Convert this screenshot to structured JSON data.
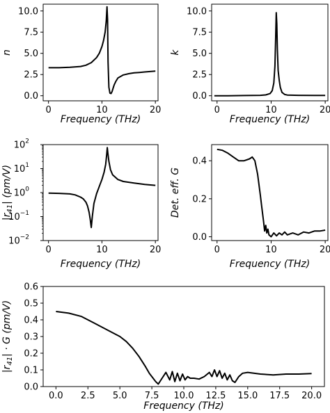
{
  "chart_data": [
    {
      "id": "n",
      "type": "line",
      "xlabel": "Frequency (THz)",
      "ylabel": "n",
      "xlim": [
        -1,
        20.5
      ],
      "ylim": [
        -0.6,
        10.8
      ],
      "xticks": [
        0,
        10,
        20
      ],
      "xtick_labels": [
        "0",
        "10",
        "20"
      ],
      "yticks": [
        0,
        2.5,
        5,
        7.5,
        10
      ],
      "ytick_labels": [
        "0.0",
        "2.5",
        "5.0",
        "7.5",
        "10.0"
      ],
      "yscale": "linear",
      "x": [
        0,
        2,
        4,
        6,
        7,
        8,
        9,
        9.5,
        10,
        10.3,
        10.6,
        10.8,
        10.95,
        11.05,
        11.15,
        11.3,
        11.5,
        11.7,
        11.9,
        12.1,
        12.3,
        12.6,
        13,
        14,
        15,
        16,
        17,
        18,
        19,
        20
      ],
      "y": [
        3.3,
        3.3,
        3.35,
        3.45,
        3.6,
        3.9,
        4.5,
        5.0,
        5.8,
        6.5,
        7.5,
        8.8,
        10.5,
        9.0,
        4.0,
        1.0,
        0.3,
        0.25,
        0.5,
        0.9,
        1.3,
        1.7,
        2.1,
        2.45,
        2.6,
        2.7,
        2.75,
        2.8,
        2.85,
        2.9
      ]
    },
    {
      "id": "k",
      "type": "line",
      "xlabel": "Frequency (THz)",
      "ylabel": "k",
      "xlim": [
        -1,
        20.5
      ],
      "ylim": [
        -0.6,
        10.8
      ],
      "xticks": [
        0,
        10,
        20
      ],
      "xtick_labels": [
        "0",
        "10",
        "20"
      ],
      "yticks": [
        0,
        2.5,
        5,
        7.5,
        10
      ],
      "ytick_labels": [
        "0.0",
        "2.5",
        "5.0",
        "7.5",
        "10.0"
      ],
      "yscale": "linear",
      "x": [
        -0.5,
        2,
        5,
        8,
        9,
        9.8,
        10.2,
        10.5,
        10.7,
        10.85,
        10.95,
        11.05,
        11.15,
        11.3,
        11.5,
        11.7,
        12.0,
        12.5,
        13,
        15,
        18,
        20
      ],
      "y": [
        0.0,
        0.0,
        0.02,
        0.05,
        0.1,
        0.25,
        0.6,
        1.5,
        3.5,
        7.0,
        9.8,
        8.5,
        5.5,
        3.0,
        1.8,
        1.0,
        0.4,
        0.15,
        0.08,
        0.05,
        0.04,
        0.04
      ]
    },
    {
      "id": "r41",
      "type": "line",
      "xlabel": "Frequency (THz)",
      "ylabel": "|r41| (pm/V)",
      "xlim": [
        -1,
        20.5
      ],
      "ylim": [
        0.01,
        100
      ],
      "xticks": [
        0,
        10,
        20
      ],
      "xtick_labels": [
        "0",
        "10",
        "20"
      ],
      "yticks": [
        0.01,
        0.1,
        1,
        10,
        100
      ],
      "ytick_labels": [
        "10",
        "10",
        "10",
        "10",
        "10"
      ],
      "ytick_exponents": [
        "−2",
        "−1",
        "0",
        "1",
        "2"
      ],
      "yscale": "log",
      "x": [
        0,
        2,
        4,
        5,
        6,
        6.5,
        7,
        7.3,
        7.6,
        7.8,
        8.0,
        8.2,
        8.5,
        9,
        9.5,
        10,
        10.4,
        10.7,
        10.9,
        11.0,
        11.1,
        11.3,
        11.6,
        12,
        13,
        14,
        16,
        18,
        20
      ],
      "y": [
        0.95,
        0.93,
        0.88,
        0.8,
        0.65,
        0.55,
        0.4,
        0.28,
        0.15,
        0.08,
        0.035,
        0.1,
        0.35,
        0.9,
        1.8,
        3.5,
        7,
        15,
        40,
        75,
        45,
        20,
        9,
        5.5,
        3.5,
        2.9,
        2.5,
        2.2,
        2.0
      ]
    },
    {
      "id": "G",
      "type": "line",
      "xlabel": "Frequency (THz)",
      "ylabel": "Det. eff. G",
      "xlim": [
        -1,
        20.5
      ],
      "ylim": [
        -0.02,
        0.485
      ],
      "xticks": [
        0,
        10,
        20
      ],
      "xtick_labels": [
        "0",
        "10",
        "20"
      ],
      "yticks": [
        0,
        0.2,
        0.4
      ],
      "ytick_labels": [
        "0.0",
        "0.2",
        "0.4"
      ],
      "yscale": "linear",
      "x": [
        0,
        1,
        2,
        3,
        4,
        5,
        6,
        6.5,
        7,
        7.5,
        8,
        8.3,
        8.6,
        8.8,
        9,
        9.2,
        9.4,
        9.6,
        10,
        10.5,
        11,
        11.5,
        12,
        12.5,
        13,
        14,
        15,
        16,
        17,
        18,
        19,
        20
      ],
      "y": [
        0.46,
        0.455,
        0.44,
        0.42,
        0.4,
        0.4,
        0.41,
        0.42,
        0.4,
        0.33,
        0.22,
        0.15,
        0.08,
        0.03,
        0.06,
        0.02,
        0.04,
        0.01,
        0.0,
        0.02,
        0.005,
        0.02,
        0.01,
        0.025,
        0.01,
        0.02,
        0.01,
        0.025,
        0.02,
        0.03,
        0.03,
        0.035
      ]
    },
    {
      "id": "r41G",
      "type": "line",
      "xlabel": "Frequency (THz)",
      "ylabel": "|r41| · G (pm/V)",
      "xlim": [
        -1,
        21
      ],
      "ylim": [
        0,
        0.6
      ],
      "xticks": [
        0,
        2.5,
        5,
        7.5,
        10,
        12.5,
        15,
        17.5,
        20
      ],
      "xtick_labels": [
        "0.0",
        "2.5",
        "5.0",
        "7.5",
        "10.0",
        "12.5",
        "15.0",
        "17.5",
        "20.0"
      ],
      "yticks": [
        0,
        0.1,
        0.2,
        0.3,
        0.4,
        0.5,
        0.6
      ],
      "ytick_labels": [
        "0.0",
        "0.1",
        "0.2",
        "0.3",
        "0.4",
        "0.5",
        "0.6"
      ],
      "yscale": "linear",
      "x": [
        0,
        1,
        2,
        3,
        4,
        5,
        5.5,
        6,
        6.5,
        7,
        7.3,
        7.6,
        7.8,
        8.0,
        8.3,
        8.6,
        8.9,
        9.1,
        9.3,
        9.5,
        9.7,
        9.9,
        10.1,
        10.3,
        10.5,
        10.8,
        11.2,
        11.6,
        12.0,
        12.2,
        12.4,
        12.6,
        12.8,
        13.0,
        13.2,
        13.4,
        13.6,
        13.8,
        14.0,
        14.3,
        14.6,
        15,
        16,
        17,
        18,
        19,
        20
      ],
      "y": [
        0.45,
        0.44,
        0.42,
        0.38,
        0.34,
        0.3,
        0.27,
        0.23,
        0.18,
        0.12,
        0.08,
        0.05,
        0.03,
        0.015,
        0.05,
        0.085,
        0.04,
        0.09,
        0.03,
        0.08,
        0.035,
        0.075,
        0.04,
        0.06,
        0.05,
        0.05,
        0.045,
        0.06,
        0.085,
        0.06,
        0.1,
        0.06,
        0.095,
        0.05,
        0.08,
        0.04,
        0.07,
        0.035,
        0.025,
        0.06,
        0.08,
        0.085,
        0.075,
        0.07,
        0.075,
        0.075,
        0.078
      ]
    }
  ]
}
